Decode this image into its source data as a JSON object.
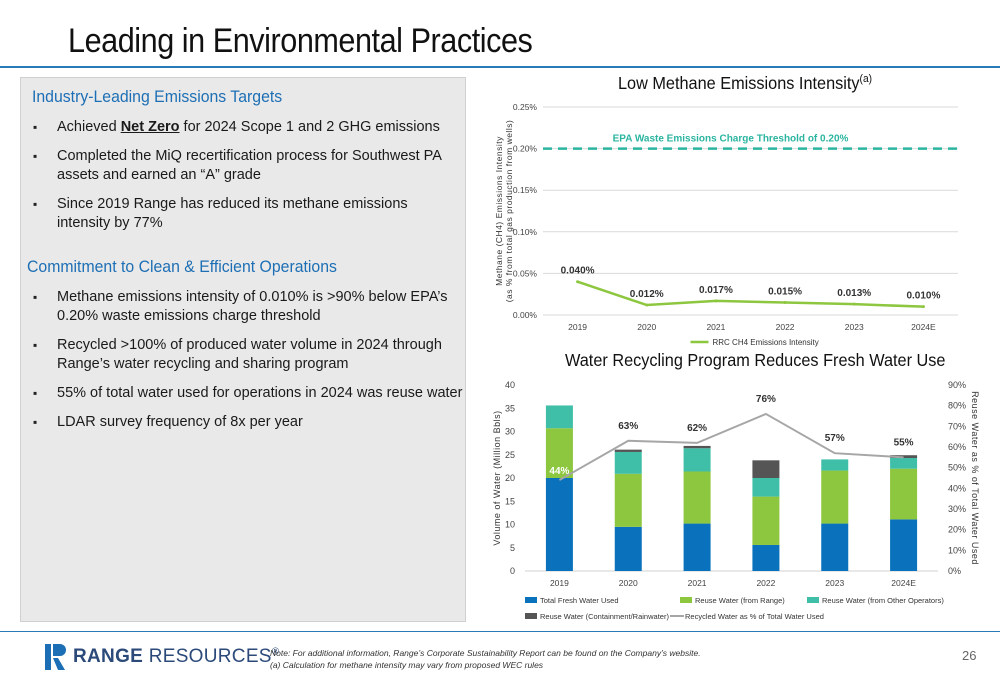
{
  "page": {
    "title": "Leading in Environmental Practices",
    "page_number": "26",
    "logo": {
      "brand": "RANGE",
      "suffix": "RESOURCES",
      "mark": "®"
    },
    "notes": [
      "Note: For additional information, Range’s Corporate Sustainability Report can be found on the Company’s website.",
      "(a)    Calculation for methane intensity may vary from proposed WEC rules"
    ]
  },
  "left_panel": {
    "section1": {
      "heading": "Industry-Leading Emissions Targets",
      "bullets": [
        {
          "pre": "Achieved ",
          "bold": "Net Zero",
          "post": " for 2024 Scope 1 and 2 GHG emissions"
        },
        {
          "pre": "Completed the MiQ recertification process for Southwest PA assets and earned an “A” grade",
          "bold": "",
          "post": ""
        },
        {
          "pre": "Since 2019 Range has reduced its methane emissions intensity by 77%",
          "bold": "",
          "post": ""
        }
      ]
    },
    "section2": {
      "heading": "Commitment to Clean & Efficient Operations",
      "bullets": [
        "Methane emissions intensity of 0.010% is >90% below EPA’s 0.20% waste emissions charge threshold",
        "Recycled >100% of produced water volume in 2024 through Range’s water recycling and sharing program",
        "55% of total water used for operations in 2024 was reuse water",
        "LDAR survey frequency of 8x per year"
      ]
    }
  },
  "chart_data": [
    {
      "type": "line",
      "title": "Low Methane Emissions Intensity",
      "title_sup": "(a)",
      "ylabel": "Methane (CH4) Emissions Intensity (as % from total gas production from wells)",
      "ylabel_lines": [
        "Methane (CH4)  Emissions Intensity",
        "(as % from total gas production from wells)"
      ],
      "x": [
        "2019",
        "2020",
        "2021",
        "2022",
        "2023",
        "2024E"
      ],
      "ylim": [
        0,
        0.25
      ],
      "yticks": [
        "0.00%",
        "0.05%",
        "0.10%",
        "0.15%",
        "0.20%",
        "0.25%"
      ],
      "series": [
        {
          "name": "RRC CH4 Emissions Intensity",
          "values": [
            0.04,
            0.012,
            0.017,
            0.015,
            0.013,
            0.01
          ],
          "labels": [
            "0.040%",
            "0.012%",
            "0.017%",
            "0.015%",
            "0.013%",
            "0.010%"
          ],
          "color": "#8dc63f"
        }
      ],
      "threshold": {
        "value": 0.2,
        "label": "EPA Waste Emissions Charge Threshold of 0.20%",
        "color": "#2bb5a0"
      },
      "legend_position": "bottom",
      "grid": true
    },
    {
      "type": "bar",
      "stacked": true,
      "title": "Water Recycling Program Reduces Fresh Water Use",
      "ylabel": "Volume of Water (Million Bbls)",
      "y2label": "Reuse Water as % of Total Water Used",
      "categories": [
        "2019",
        "2020",
        "2021",
        "2022",
        "2023",
        "2024E"
      ],
      "ylim": [
        0,
        40
      ],
      "yticks": [
        "0",
        "5",
        "10",
        "15",
        "20",
        "25",
        "30",
        "35",
        "40"
      ],
      "y2lim": [
        0,
        90
      ],
      "y2ticks": [
        "0%",
        "10%",
        "20%",
        "30%",
        "40%",
        "50%",
        "60%",
        "70%",
        "80%",
        "90%"
      ],
      "series": [
        {
          "name": "Total Fresh Water Used",
          "values": [
            20,
            9.5,
            10.2,
            5.6,
            10.2,
            11.1
          ],
          "color": "#0a72bc"
        },
        {
          "name": "Reuse Water (from Range)",
          "values": [
            10.7,
            11.4,
            11.2,
            10.4,
            11.4,
            10.9
          ],
          "color": "#8dc63f"
        },
        {
          "name": "Reuse Water (from Other Operators)",
          "values": [
            4.9,
            4.7,
            5,
            4,
            2.4,
            2.3
          ],
          "color": "#40bfa8"
        },
        {
          "name": "Reuse Water (Containment/Rainwater)",
          "values": [
            0,
            0.5,
            0.5,
            3.8,
            0,
            0.6
          ],
          "color": "#555555"
        }
      ],
      "line": {
        "name": "Recycled Water as % of Total Water Used",
        "values": [
          44,
          63,
          62,
          76,
          57,
          55
        ],
        "labels": [
          "44%",
          "63%",
          "62%",
          "76%",
          "57%",
          "55%"
        ],
        "color": "#a6a6a6"
      },
      "legend_position": "bottom",
      "grid": false
    }
  ]
}
